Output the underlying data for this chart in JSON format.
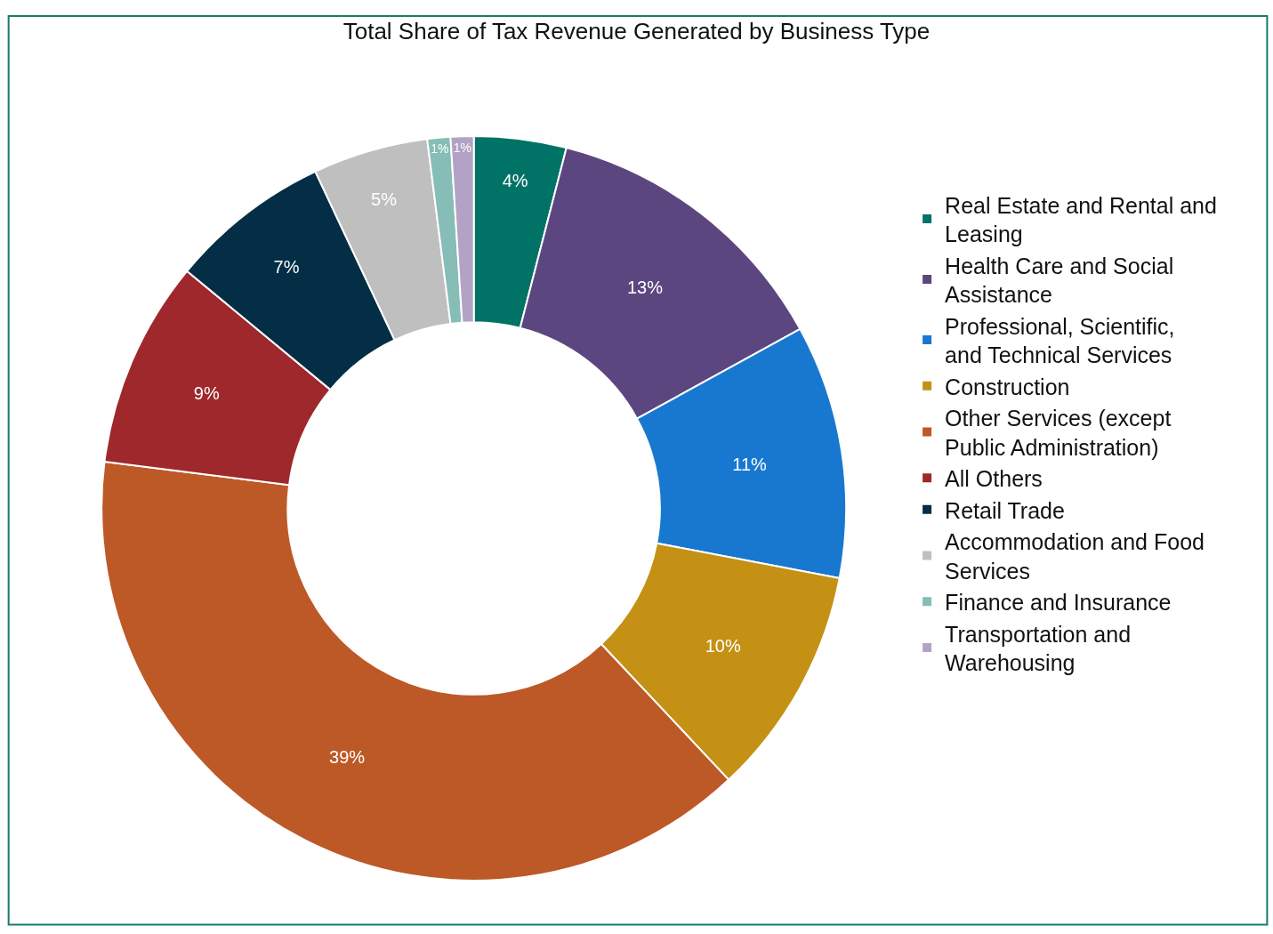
{
  "chart_data": {
    "type": "donut",
    "title": "Total Share of Tax Revenue Generated by Business Type",
    "categories": [
      "Real Estate and Rental and Leasing",
      "Health Care and Social Assistance",
      "Professional, Scientific, and Technical Services",
      "Construction",
      "Other Services (except Public Administration)",
      "All Others",
      "Retail Trade",
      "Accommodation and Food Services",
      "Finance and Insurance",
      "Transportation and Warehousing"
    ],
    "values": [
      4,
      13,
      11,
      10,
      39,
      9,
      7,
      5,
      1,
      1
    ],
    "value_labels": [
      "4%",
      "13%",
      "11%",
      "10%",
      "39%",
      "9%",
      "7%",
      "5%",
      "1%",
      "1%"
    ],
    "colors": [
      "#007266",
      "#5c4680",
      "#1878d0",
      "#c49115",
      "#bd5927",
      "#9e282b",
      "#032e45",
      "#bfbfbf",
      "#86bdb6",
      "#b3a2c6"
    ],
    "legend": "right"
  }
}
